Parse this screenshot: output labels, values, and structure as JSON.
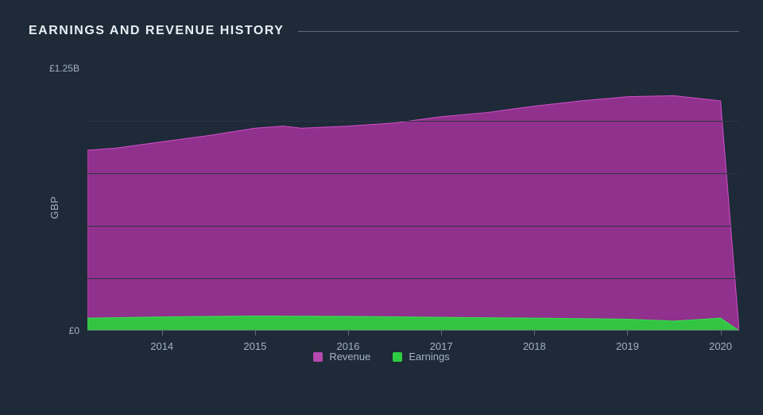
{
  "chart": {
    "type": "area",
    "title": "EARNINGS AND REVENUE HISTORY",
    "background_color": "#1e2a38",
    "grid_color": "#2a3645",
    "axis_line_color": "#5f6b79",
    "tick_label_color": "#a4b1c2",
    "tick_label_fontsize": 13,
    "title_color": "#e8eef4",
    "title_fontsize": 16,
    "y_axis_label": "GBP",
    "y_axis_label_fontsize": 13,
    "y_range": [
      0,
      1.25
    ],
    "y_ticks": [
      {
        "value": 0.0,
        "label": "£0"
      },
      {
        "value": 1.25,
        "label": "£1.25B"
      }
    ],
    "y_minor_gridlines": [
      0.25,
      0.5,
      0.75,
      1.0
    ],
    "x_range": [
      2013.2,
      2020.2
    ],
    "x_ticks": [
      {
        "value": 2014,
        "label": "2014"
      },
      {
        "value": 2015,
        "label": "2015"
      },
      {
        "value": 2016,
        "label": "2016"
      },
      {
        "value": 2017,
        "label": "2017"
      },
      {
        "value": 2018,
        "label": "2018"
      },
      {
        "value": 2019,
        "label": "2019"
      },
      {
        "value": 2020,
        "label": "2020"
      }
    ],
    "series": [
      {
        "name": "Revenue",
        "fill_color": "#9a3295",
        "stroke_color": "#d24fc8",
        "fill_opacity": 0.92,
        "stroke_width": 1,
        "x": [
          2013.2,
          2013.5,
          2014.0,
          2014.5,
          2015.0,
          2015.3,
          2015.5,
          2016.0,
          2016.5,
          2017.0,
          2017.5,
          2018.0,
          2018.5,
          2019.0,
          2019.5,
          2020.0,
          2020.2
        ],
        "y": [
          0.86,
          0.87,
          0.9,
          0.93,
          0.965,
          0.975,
          0.965,
          0.975,
          0.99,
          1.02,
          1.04,
          1.07,
          1.095,
          1.115,
          1.12,
          1.095,
          0.0
        ]
      },
      {
        "name": "Earnings",
        "fill_color": "#2ecc40",
        "stroke_color": "#3ae04f",
        "fill_opacity": 0.95,
        "stroke_width": 1,
        "x": [
          2013.2,
          2014.0,
          2015.0,
          2016.0,
          2017.0,
          2018.0,
          2019.0,
          2019.5,
          2020.0,
          2020.2
        ],
        "y": [
          0.06,
          0.066,
          0.07,
          0.068,
          0.064,
          0.06,
          0.055,
          0.046,
          0.06,
          0.0
        ]
      }
    ],
    "legend": {
      "items": [
        {
          "label": "Revenue",
          "color": "#b648b0"
        },
        {
          "label": "Earnings",
          "color": "#2ecc40"
        }
      ],
      "label_color": "#a4b1c2",
      "label_fontsize": 13
    }
  }
}
